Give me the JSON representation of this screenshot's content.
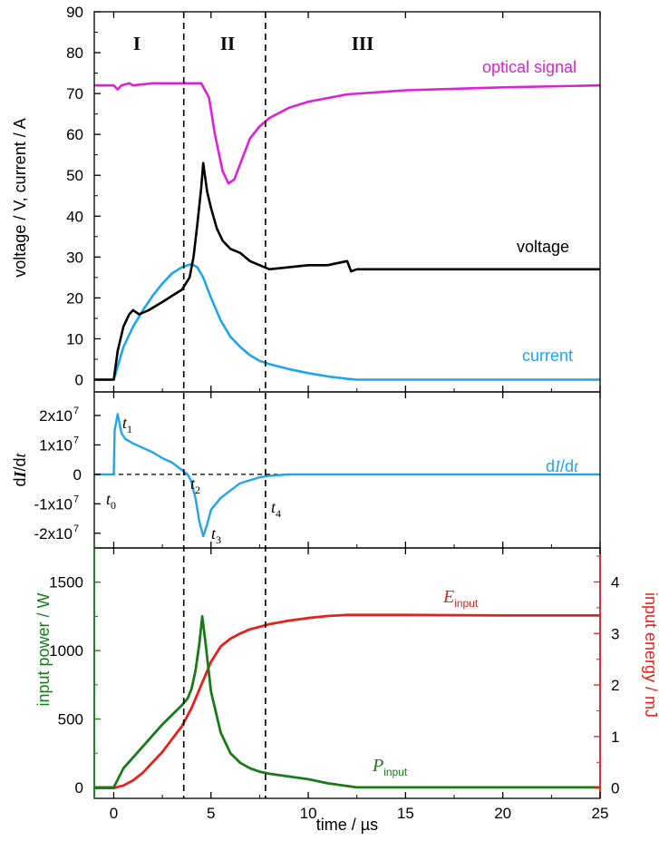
{
  "colors": {
    "optical": "#e020d8",
    "voltage": "#000000",
    "current": "#1ea6e8",
    "didt": "#1ea6e8",
    "power": "#1a7a1a",
    "energy": "#e8201a"
  },
  "chart_data": [
    {
      "type": "line",
      "panel": "top",
      "ylabel": "voltage / V, current / A",
      "ylim": [
        -3,
        90
      ],
      "xlim": [
        -1,
        25
      ],
      "y_ticks": [
        "0",
        "10",
        "20",
        "30",
        "40",
        "50",
        "60",
        "70",
        "80",
        "90"
      ],
      "regions": [
        "I",
        "II",
        "III"
      ],
      "boundaries": [
        3.6,
        7.8
      ],
      "series": [
        {
          "name": "optical signal",
          "x": [
            -1,
            0,
            0.2,
            0.4,
            0.8,
            1.0,
            2.0,
            3.0,
            4.5,
            4.9,
            5.2,
            5.6,
            5.9,
            6.2,
            6.6,
            7.0,
            7.5,
            8.0,
            9.0,
            10.0,
            12.0,
            15.0,
            20.0,
            25.0
          ],
          "y": [
            72,
            72,
            71,
            72,
            72.5,
            72,
            72.5,
            72.5,
            72.5,
            69,
            60,
            51,
            48,
            49,
            54,
            59,
            62,
            64,
            66.5,
            68,
            69.8,
            70.8,
            71.5,
            72
          ]
        },
        {
          "name": "voltage",
          "x": [
            -1,
            0,
            0.2,
            0.5,
            0.8,
            1.0,
            1.3,
            1.8,
            2.5,
            3.0,
            3.5,
            3.9,
            4.1,
            4.3,
            4.5,
            4.6,
            4.8,
            5.0,
            5.3,
            5.6,
            6.0,
            6.5,
            7.0,
            7.5,
            8.0,
            9.0,
            10.0,
            11.0,
            12.0,
            12.2,
            12.5,
            15.0,
            20.0,
            25.0
          ],
          "y": [
            0,
            0,
            7,
            13,
            16,
            17,
            16,
            17,
            19,
            20.5,
            22,
            25,
            30,
            38,
            47,
            53,
            46,
            42,
            37,
            34,
            32,
            31,
            29,
            28,
            27,
            27.5,
            28,
            28,
            29,
            26.5,
            27,
            27,
            27,
            27
          ]
        },
        {
          "name": "current",
          "x": [
            -1,
            0,
            0.5,
            1.0,
            1.5,
            2.0,
            2.5,
            3.0,
            3.5,
            4.0,
            4.3,
            4.6,
            5.0,
            5.5,
            6.0,
            6.5,
            7.0,
            7.5,
            8.0,
            9.0,
            10.0,
            11.0,
            12.0,
            12.5,
            15.0,
            20.0,
            25.0
          ],
          "y": [
            0,
            0,
            8,
            13,
            17,
            20.5,
            23.5,
            26,
            27.5,
            28.3,
            27.5,
            25,
            20,
            14.5,
            10.5,
            8,
            6,
            4.6,
            3.8,
            2.6,
            1.6,
            0.8,
            0.2,
            0,
            0,
            0,
            0
          ]
        }
      ]
    },
    {
      "type": "line",
      "panel": "middle",
      "ylabel": "dI/dt",
      "ylim": [
        -25000000.0,
        28000000.0
      ],
      "xlim": [
        -1,
        25
      ],
      "y_ticks": [
        "2x10",
        "1x10",
        "0",
        "-1x10",
        "-2x10"
      ],
      "y_tick_exponent": "7",
      "annotations": [
        "t",
        "t",
        "t",
        "t",
        "t"
      ],
      "annotation_subscripts": [
        "0",
        "1",
        "2",
        "3",
        "4"
      ],
      "series": [
        {
          "name": "dI/dt",
          "x": [
            -1,
            0,
            0.05,
            0.2,
            0.4,
            0.6,
            1.0,
            1.5,
            2.0,
            2.5,
            3.0,
            3.5,
            3.8,
            4.0,
            4.2,
            4.4,
            4.6,
            4.8,
            5.0,
            5.5,
            6.0,
            6.5,
            7.0,
            7.5,
            8.0,
            9.0,
            10.0,
            12.0,
            15.0,
            20.0,
            25.0
          ],
          "y": [
            0,
            0,
            15000000.0,
            20500000.0,
            14000000.0,
            12000000.0,
            10500000.0,
            9000000.0,
            7500000.0,
            5500000.0,
            4000000.0,
            1500000.0,
            0,
            -2500000.0,
            -8000000.0,
            -16000000.0,
            -21000000.0,
            -17000000.0,
            -12000000.0,
            -8000000.0,
            -5500000.0,
            -3000000.0,
            -2000000.0,
            -1000000.0,
            -500000.0,
            0,
            0,
            0,
            0,
            0,
            0
          ]
        }
      ]
    },
    {
      "type": "line",
      "panel": "bottom",
      "ylabel": "input power / W",
      "ylabel2": "input energy / mJ",
      "xlabel": "time / µs",
      "ylim": [
        -80,
        1750
      ],
      "ylim2": [
        -0.2,
        4.66
      ],
      "xlim": [
        -1,
        25
      ],
      "x_ticks": [
        "0",
        "5",
        "10",
        "15",
        "20",
        "25"
      ],
      "y_ticks": [
        "0",
        "500",
        "1000",
        "1500"
      ],
      "y2_ticks": [
        "0",
        "1",
        "2",
        "3",
        "4"
      ],
      "series": [
        {
          "name": "P",
          "name_sub": "input",
          "axis": "left",
          "x": [
            -1,
            0,
            0.5,
            1.0,
            1.5,
            2.0,
            2.5,
            3.0,
            3.5,
            3.8,
            4.0,
            4.2,
            4.4,
            4.55,
            4.7,
            5.0,
            5.5,
            6.0,
            6.5,
            7.0,
            7.5,
            8.0,
            9.0,
            10.0,
            11.0,
            12.0,
            12.5,
            15.0,
            20.0,
            25.0
          ],
          "y": [
            0,
            0,
            140,
            220,
            300,
            380,
            460,
            530,
            600,
            650,
            720,
            850,
            1050,
            1250,
            1080,
            700,
            400,
            250,
            180,
            140,
            115,
            100,
            80,
            60,
            30,
            10,
            0,
            0,
            0,
            0
          ]
        },
        {
          "name": "E",
          "name_sub": "input",
          "axis": "right",
          "x": [
            -1,
            0,
            0.5,
            1.0,
            1.5,
            2.0,
            2.5,
            3.0,
            3.5,
            4.0,
            4.5,
            5.0,
            5.5,
            6.0,
            6.5,
            7.0,
            7.5,
            8.0,
            9.0,
            10.0,
            11.0,
            12.0,
            15.0,
            20.0,
            25.0
          ],
          "y": [
            0,
            0,
            0.05,
            0.15,
            0.3,
            0.5,
            0.7,
            0.95,
            1.2,
            1.55,
            2.0,
            2.45,
            2.75,
            2.9,
            3.0,
            3.08,
            3.13,
            3.18,
            3.25,
            3.3,
            3.34,
            3.36,
            3.36,
            3.35,
            3.35
          ]
        }
      ]
    }
  ]
}
